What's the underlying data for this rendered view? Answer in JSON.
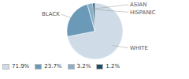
{
  "chart_data": {
    "type": "pie",
    "categories": [
      "WHITE",
      "BLACK",
      "HISPANIC",
      "ASIAN"
    ],
    "values": [
      71.9,
      23.7,
      3.2,
      1.2
    ],
    "value_labels": [
      "71.9%",
      "23.7%",
      "3.2%",
      "1.2%"
    ],
    "colors": [
      "#cfdce8",
      "#6b9ab8",
      "#8ab0c8",
      "#1e4d6b"
    ],
    "legend": "lower left"
  }
}
